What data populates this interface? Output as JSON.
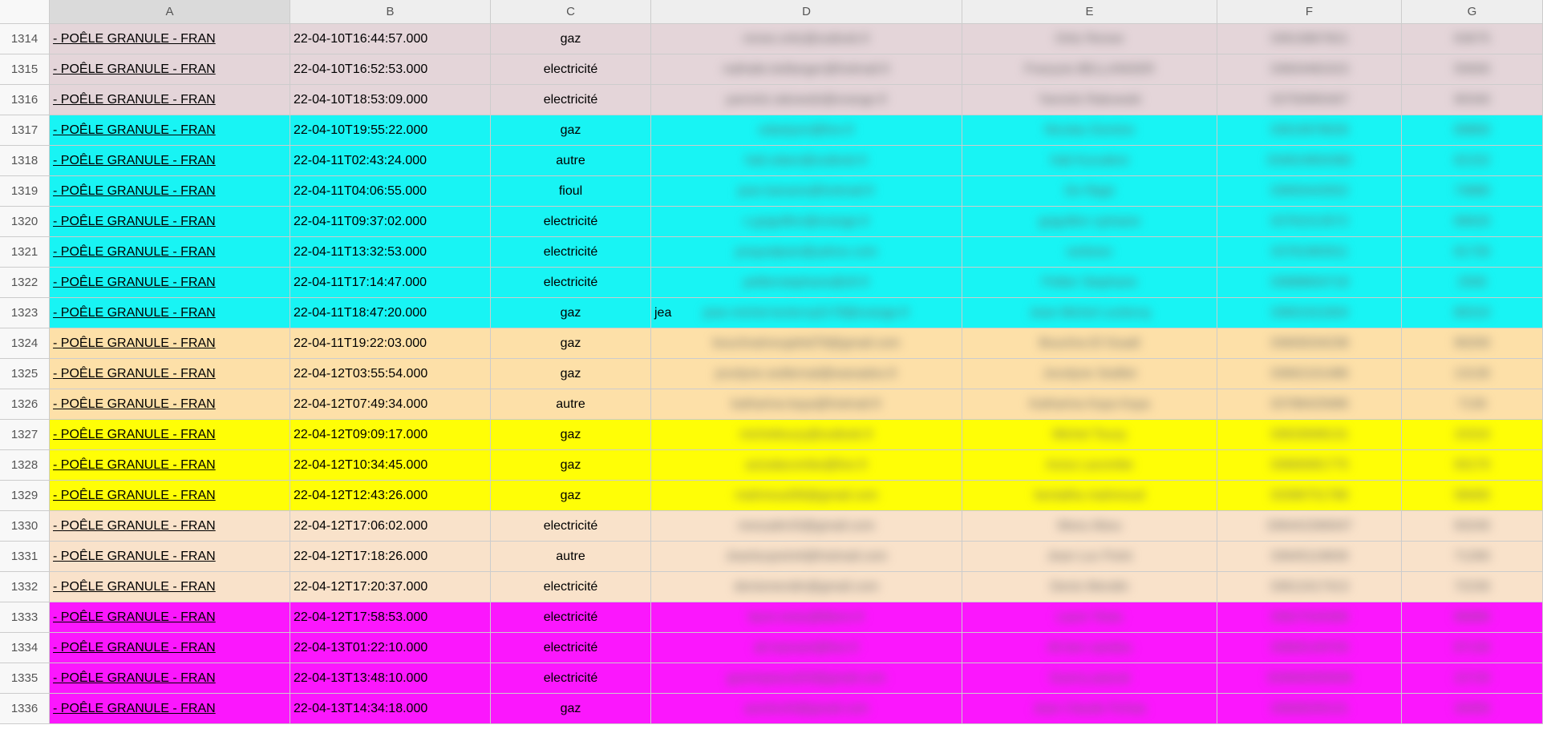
{
  "columns": [
    "A",
    "B",
    "C",
    "D",
    "E",
    "F",
    "G"
  ],
  "column_widths": {
    "A": 300,
    "B": 250,
    "C": 200,
    "D": 388,
    "E": 318,
    "F": 230,
    "G": 176
  },
  "row_colors": {
    "pink": "#e4d5d9",
    "cyan": "#18f4f4",
    "tan": "#fde0a8",
    "yellow": "#fffe06",
    "peach": "#f9e2ca",
    "magenta": "#fb17fd"
  },
  "rows": [
    {
      "num": "1314",
      "color": "pink",
      "a": "- POÊLE GRANULE - FRAN",
      "b": "22-04-10T16:44:57.000",
      "c": "gaz",
      "d": "renee.ortiz@outlook.fr",
      "e": "Ortiz Renee",
      "f": "33610867821",
      "g": "63675"
    },
    {
      "num": "1315",
      "color": "pink",
      "a": "- POÊLE GRANULE - FRAN",
      "b": "22-04-10T16:52:53.000",
      "c": "electricité",
      "d": "nathalie.bellanger@hotmail.fr",
      "e": "François BELLANGER",
      "f": "33604482423",
      "g": "55600"
    },
    {
      "num": "1316",
      "color": "pink",
      "a": "- POÊLE GRANULE - FRAN",
      "b": "22-04-10T18:53:09.000",
      "c": "electricité",
      "d": "yannick.rakowski@orange.fr",
      "e": "Yannick Rakowski",
      "f": "33750965407",
      "g": "90340"
    },
    {
      "num": "1317",
      "color": "cyan",
      "a": "- POÊLE GRANULE - FRAN",
      "b": "22-04-10T19:55:22.000",
      "c": "gaz",
      "d": "odastyon@live.fr",
      "e": "Nicolas Domino",
      "f": "33619978026",
      "g": "69800"
    },
    {
      "num": "1318",
      "color": "cyan",
      "a": "- POÊLE GRANULE - FRAN",
      "b": "22-04-11T02:43:24.000",
      "c": "autre",
      "d": "hali.odare@outlook.fr",
      "e": "Hali Kurudere",
      "f": "334624604382",
      "g": "62152"
    },
    {
      "num": "1319",
      "color": "cyan",
      "a": "- POÊLE GRANULE - FRAN",
      "b": "22-04-11T04:06:55.000",
      "c": "fioul",
      "d": "jean.banane@hotmail.fr",
      "e": "De Rippi",
      "f": "33650443552",
      "g": "74880"
    },
    {
      "num": "1320",
      "color": "cyan",
      "a": "- POÊLE GRANULE - FRAN",
      "b": "22-04-11T09:37:02.000",
      "c": "electricité",
      "d": "s.goguillon@orange.fr",
      "e": "goguillon sylviane",
      "f": "33781013572",
      "g": "66620"
    },
    {
      "num": "1321",
      "color": "cyan",
      "a": "- POÊLE GRANULE - FRAN",
      "b": "22-04-11T13:32:53.000",
      "c": "electricité",
      "d": "josquetjean@yahoo.com",
      "e": "ranboec",
      "f": "33781983911",
      "g": "81730"
    },
    {
      "num": "1322",
      "color": "cyan",
      "a": "- POÊLE GRANULE - FRAN",
      "b": "22-04-11T17:14:47.000",
      "c": "electricité",
      "d": "peltierstephane@sfr.fr",
      "e": "Peltier Stephane",
      "f": "33688604718",
      "g": "2500"
    },
    {
      "num": "1323",
      "color": "cyan",
      "a": "- POÊLE GRANULE - FRAN",
      "b": "22-04-11T18:47:20.000",
      "c": "gaz",
      "d": "jean.michel.leclercq3178@orange.fr",
      "d_prefix": "jea",
      "e": "Jean Michel Leclercq",
      "f": "33601911604",
      "g": "80310"
    },
    {
      "num": "1324",
      "color": "tan",
      "a": "- POÊLE GRANULE - FRAN",
      "b": "22-04-11T19:22:03.000",
      "c": "gaz",
      "d": "bouchraimoujahid78@gmail.com",
      "e": "Bouchra El Ouadi",
      "f": "33605034238",
      "g": "90200"
    },
    {
      "num": "1325",
      "color": "tan",
      "a": "- POÊLE GRANULE - FRAN",
      "b": "22-04-12T03:55:54.000",
      "c": "gaz",
      "d": "jocelyne.sedterrad@wanadoo.fr",
      "e": "Jocelyne Sedilot",
      "f": "33662101486",
      "g": "13130"
    },
    {
      "num": "1326",
      "color": "tan",
      "a": "- POÊLE GRANULE - FRAN",
      "b": "22-04-12T07:49:34.000",
      "c": "autre",
      "d": "katharina-kaya@hotmail.fr",
      "e": "Katharina Kaya Kaya",
      "f": "33788425686",
      "g": "7130"
    },
    {
      "num": "1327",
      "color": "yellow",
      "a": "- POÊLE GRANULE - FRAN",
      "b": "22-04-12T09:09:17.000",
      "c": "gaz",
      "d": "micheltouzy@outlook.fr",
      "e": "Michel Touzy",
      "f": "33633008131",
      "g": "15310"
    },
    {
      "num": "1328",
      "color": "yellow",
      "a": "- POÊLE GRANULE - FRAN",
      "b": "22-04-12T10:34:45.000",
      "c": "gaz",
      "d": "azizalacombe@live.fr",
      "e": "Aziza Lacombe",
      "f": "33660081775",
      "g": "93170"
    },
    {
      "num": "1329",
      "color": "yellow",
      "a": "- POÊLE GRANULE - FRAN",
      "b": "22-04-12T12:43:26.000",
      "c": "gaz",
      "d": "mahmoud36@gmail.com",
      "e": "bentalha  mahmoud",
      "f": "33396751780",
      "g": "58400"
    },
    {
      "num": "1330",
      "color": "peach",
      "a": "- POÊLE GRANULE - FRAN",
      "b": "22-04-12T17:06:02.000",
      "c": "electricité",
      "d": "messalin33@gmail.com",
      "e": "Mess Abou",
      "f": "336441590047",
      "g": "93240"
    },
    {
      "num": "1331",
      "color": "peach",
      "a": "- POÊLE GRANULE - FRAN",
      "b": "22-04-12T17:18:26.000",
      "c": "autre",
      "d": "Jeanlucpoint4@hotmail.com",
      "e": "Jean Luc Point",
      "f": "33645119839",
      "g": "71260"
    },
    {
      "num": "1332",
      "color": "peach",
      "a": "- POÊLE GRANULE - FRAN",
      "b": "22-04-12T17:20:37.000",
      "c": "electricité",
      "d": "denismendin@gmail.com",
      "e": "Denis Mendin",
      "f": "33612417413",
      "g": "72230"
    },
    {
      "num": "1333",
      "color": "magenta",
      "a": "- POÊLE GRANULE - FRAN",
      "b": "22-04-12T17:58:53.000",
      "c": "electricité",
      "d": "laure.testu@libero.fr",
      "e": "Laure Testu",
      "f": "33627544300",
      "g": "66680"
    },
    {
      "num": "1334",
      "color": "magenta",
      "a": "- POÊLE GRANULE - FRAN",
      "b": "22-04-13T01:22:10.000",
      "c": "electricité",
      "d": "ali.hasnani@live.fr",
      "e": "Ali ben sandou",
      "f": "33660149704",
      "g": "87130"
    },
    {
      "num": "1335",
      "color": "magenta",
      "a": "- POÊLE GRANULE - FRAN",
      "b": "22-04-13T13:48:10.000",
      "c": "electricité",
      "d": "guerinpascal34@gmail.com",
      "e": "Guerry pascal",
      "f": "334840450646",
      "g": "22720"
    },
    {
      "num": "1336",
      "color": "magenta",
      "a": "- POÊLE GRANULE - FRAN",
      "b": "22-04-13T14:34:18.000",
      "c": "gaz",
      "d": "azerko34@gmail.com",
      "e": "Jean Claude Fichas",
      "f": "33608200131",
      "g": "34450"
    }
  ]
}
